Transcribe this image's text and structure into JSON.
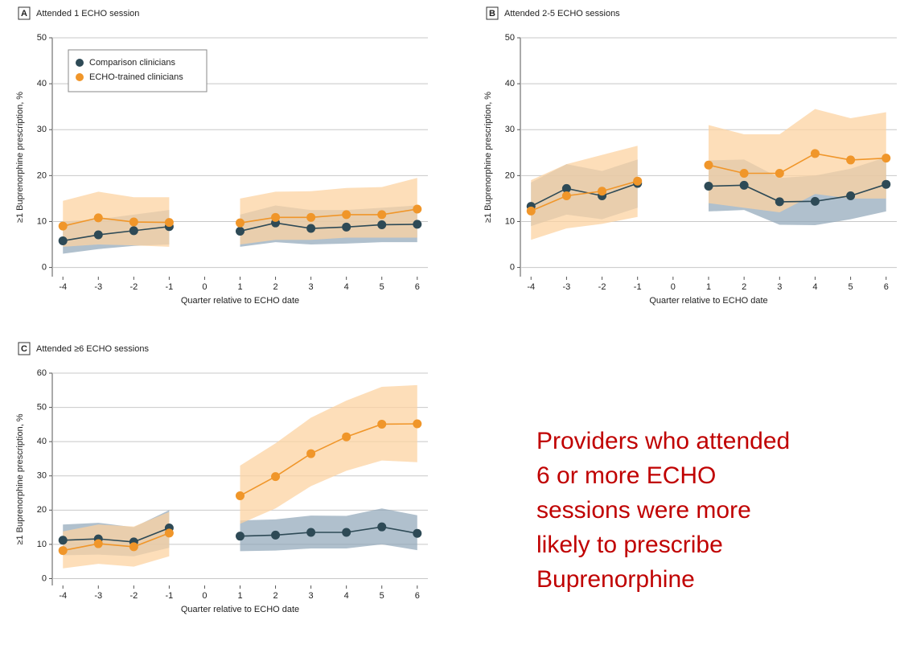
{
  "chart_data": [
    {
      "type": "line",
      "panel": "A",
      "title": "Attended 1 ECHO session",
      "xlabel": "Quarter relative to ECHO date",
      "ylabel": "≥1 Buprenorphine prescription, %",
      "x": [
        -4,
        -3,
        -2,
        -1,
        0,
        1,
        2,
        3,
        4,
        5,
        6
      ],
      "xlim": [
        -4.3,
        6.3
      ],
      "xticks": [
        -4,
        -3,
        -2,
        -1,
        0,
        1,
        2,
        3,
        4,
        5,
        6
      ],
      "ylim": [
        -2,
        50
      ],
      "yticks": [
        0,
        10,
        20,
        30,
        40,
        50
      ],
      "grid": true,
      "legend": "upper left",
      "series": [
        {
          "name": "Comparison clinicians",
          "color": "#2e4a56",
          "band_color": "#8ea5b8",
          "values": [
            5.8,
            7.1,
            8.0,
            8.9,
            null,
            7.9,
            9.7,
            8.5,
            8.8,
            9.3,
            9.4
          ],
          "lower": [
            3,
            4,
            4.7,
            5,
            null,
            4.5,
            5.5,
            5,
            5.2,
            5.5,
            5.5
          ],
          "upper": [
            10,
            10.5,
            11.5,
            12.5,
            null,
            11.5,
            13.5,
            12.5,
            12.5,
            13,
            13.5
          ]
        },
        {
          "name": "ECHO-trained clinicians",
          "color": "#f0962a",
          "band_color": "#fcd3a2",
          "values": [
            9.0,
            10.8,
            9.9,
            9.8,
            null,
            9.7,
            10.9,
            10.9,
            11.5,
            11.5,
            12.7
          ],
          "lower": [
            4.5,
            5,
            4.8,
            4.5,
            null,
            5,
            6,
            6,
            6.5,
            6.5,
            6.5
          ],
          "upper": [
            14.5,
            16.5,
            15.3,
            15.3,
            null,
            15,
            16.5,
            16.6,
            17.3,
            17.5,
            19.5
          ]
        }
      ]
    },
    {
      "type": "line",
      "panel": "B",
      "title": "Attended 2-5 ECHO sessions",
      "xlabel": "Quarter relative to ECHO date",
      "ylabel": "≥1 Buprenorphine prescription, %",
      "x": [
        -4,
        -3,
        -2,
        -1,
        0,
        1,
        2,
        3,
        4,
        5,
        6
      ],
      "xlim": [
        -4.3,
        6.3
      ],
      "xticks": [
        -4,
        -3,
        -2,
        -1,
        0,
        1,
        2,
        3,
        4,
        5,
        6
      ],
      "ylim": [
        -2,
        50
      ],
      "yticks": [
        0,
        10,
        20,
        30,
        40,
        50
      ],
      "grid": true,
      "series": [
        {
          "color": "#2e4a56",
          "band_color": "#8ea5b8",
          "values": [
            13.3,
            17.2,
            15.6,
            18.3,
            null,
            17.7,
            17.9,
            14.3,
            14.4,
            15.6,
            18.1
          ],
          "lower": [
            9,
            11.5,
            10.5,
            13,
            null,
            12.2,
            12.5,
            9.3,
            9.2,
            10.5,
            12.2
          ],
          "upper": [
            18.5,
            22.5,
            21,
            23.5,
            null,
            23.3,
            23.5,
            19.5,
            20,
            21.5,
            24
          ]
        },
        {
          "color": "#f0962a",
          "band_color": "#fcd3a2",
          "values": [
            12.3,
            15.6,
            16.6,
            18.8,
            null,
            22.3,
            20.5,
            20.5,
            24.8,
            23.4,
            23.8
          ],
          "lower": [
            6,
            8.5,
            9.5,
            11,
            null,
            14,
            13,
            12,
            16,
            15,
            15
          ],
          "upper": [
            19,
            22.5,
            24.5,
            26.5,
            null,
            31,
            29,
            29,
            34.5,
            32.5,
            33.8
          ]
        }
      ]
    },
    {
      "type": "line",
      "panel": "C",
      "title": "Attended ≥6 ECHO sessions",
      "xlabel": "Quarter relative to ECHO date",
      "ylabel": "≥1 Buprenorphine prescription, %",
      "x": [
        -4,
        -3,
        -2,
        -1,
        0,
        1,
        2,
        3,
        4,
        5,
        6
      ],
      "xlim": [
        -4.3,
        6.3
      ],
      "xticks": [
        -4,
        -3,
        -2,
        -1,
        0,
        1,
        2,
        3,
        4,
        5,
        6
      ],
      "ylim": [
        -2,
        60
      ],
      "yticks": [
        0,
        10,
        20,
        30,
        40,
        50,
        60
      ],
      "grid": true,
      "series": [
        {
          "color": "#2e4a56",
          "band_color": "#8ea5b8",
          "values": [
            11.2,
            11.6,
            10.7,
            14.8,
            null,
            12.4,
            12.7,
            13.5,
            13.5,
            15.1,
            13.2
          ],
          "lower": [
            6.8,
            7,
            6.5,
            9,
            null,
            8,
            8.2,
            8.8,
            8.8,
            10,
            8.3
          ],
          "upper": [
            15.8,
            16.3,
            15,
            20,
            null,
            17,
            17.3,
            18.4,
            18.3,
            20.5,
            18.5
          ]
        },
        {
          "color": "#f0962a",
          "band_color": "#fcd3a2",
          "values": [
            8.2,
            10.2,
            9.3,
            13.3,
            null,
            24.2,
            29.8,
            36.5,
            41.4,
            45.1,
            45.2
          ],
          "lower": [
            3,
            4.3,
            3.5,
            6.5,
            null,
            16,
            20.5,
            27,
            31.5,
            34.5,
            34
          ],
          "upper": [
            13.8,
            15.8,
            15.2,
            19.5,
            null,
            33,
            39.5,
            47,
            52,
            56,
            56.5
          ]
        }
      ]
    }
  ],
  "annotation_lines": [
    "Providers who attended",
    "6 or more ECHO",
    "sessions were more",
    "likely to prescribe",
    "Buprenorphine"
  ]
}
